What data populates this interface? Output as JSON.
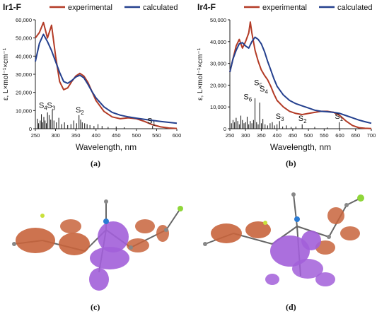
{
  "chart_data": [
    {
      "type": "line",
      "panel_title": "Ir1-F",
      "xlabel": "Wavelength, nm",
      "ylabel": "ε, L×mol⁻¹×cm⁻¹",
      "xlim": [
        250,
        600
      ],
      "ylim": [
        0,
        60000
      ],
      "x_ticks": [
        "250",
        "300",
        "350",
        "400",
        "450",
        "500",
        "550",
        "600"
      ],
      "y_ticks": [
        "0",
        "10,000",
        "20,000",
        "30,000",
        "40,000",
        "50,000",
        "60,000"
      ],
      "legend_position": "top",
      "sublabel": "(a)",
      "series": [
        {
          "name": "experimental",
          "color": "#b33b26",
          "x": [
            250,
            260,
            270,
            280,
            290,
            300,
            310,
            320,
            330,
            340,
            350,
            360,
            370,
            380,
            390,
            400,
            420,
            440,
            460,
            480,
            500,
            520,
            540,
            560,
            580,
            600
          ],
          "y": [
            50000,
            53000,
            58500,
            50000,
            57000,
            40000,
            26000,
            21500,
            22500,
            26000,
            29000,
            30500,
            29000,
            25500,
            20500,
            15500,
            9500,
            6500,
            5500,
            6000,
            5500,
            4000,
            2200,
            1000,
            400,
            150
          ]
        },
        {
          "name": "calculated",
          "color": "#24408e",
          "x": [
            250,
            260,
            270,
            280,
            290,
            300,
            310,
            320,
            330,
            340,
            350,
            360,
            370,
            380,
            390,
            400,
            420,
            440,
            460,
            480,
            500,
            520,
            540,
            560,
            580,
            600
          ],
          "y": [
            37000,
            47000,
            52000,
            48000,
            43000,
            37000,
            31000,
            26000,
            25000,
            26500,
            28500,
            29500,
            28000,
            24500,
            20500,
            17000,
            12000,
            9000,
            7500,
            6500,
            5800,
            5200,
            4600,
            4000,
            3500,
            3000
          ]
        }
      ],
      "transitions": {
        "x": [
          255,
          258,
          262,
          265,
          268,
          271,
          274,
          277,
          280,
          284,
          288,
          292,
          296,
          302,
          308,
          315,
          322,
          330,
          338,
          345,
          352,
          358,
          362,
          366,
          372,
          378,
          385,
          395,
          405,
          415,
          430,
          450,
          470,
          540
        ],
        "y": [
          5500,
          3000,
          4500,
          8000,
          3500,
          6500,
          4500,
          3000,
          9000,
          7500,
          5000,
          10500,
          4500,
          3500,
          6000,
          2500,
          3500,
          2000,
          2500,
          4500,
          3000,
          7500,
          5000,
          3500,
          3000,
          2500,
          2000,
          1500,
          2500,
          1500,
          1000,
          1200,
          800,
          1500
        ]
      },
      "state_labels": [
        {
          "name": "S",
          "sub": "4",
          "x": 269,
          "y": 11500
        },
        {
          "name": "S",
          "sub": "3",
          "x": 289,
          "y": 11500
        },
        {
          "name": "S",
          "sub": "2",
          "x": 360,
          "y": 9000
        },
        {
          "name": "S",
          "sub": "1",
          "x": 537,
          "y": 3000
        }
      ]
    },
    {
      "type": "line",
      "panel_title": "Ir4-F",
      "xlabel": "Wavelength, nm",
      "ylabel": "ε, L×mol⁻¹×cm⁻¹",
      "xlim": [
        250,
        700
      ],
      "ylim": [
        0,
        50000
      ],
      "x_ticks": [
        "250",
        "300",
        "350",
        "400",
        "450",
        "500",
        "550",
        "600",
        "650",
        "700"
      ],
      "y_ticks": [
        "0",
        "10,000",
        "20,000",
        "30,000",
        "40,000",
        "50,000"
      ],
      "legend_position": "top",
      "sublabel": "(b)",
      "series": [
        {
          "name": "experimental",
          "color": "#b33b26",
          "x": [
            250,
            260,
            270,
            280,
            290,
            300,
            310,
            315,
            320,
            330,
            340,
            350,
            360,
            370,
            380,
            390,
            400,
            420,
            440,
            460,
            480,
            500,
            520,
            540,
            560,
            580,
            600,
            620,
            640,
            660,
            680,
            700
          ],
          "y": [
            26000,
            32000,
            38000,
            41000,
            37000,
            40000,
            44000,
            49000,
            44000,
            36000,
            31000,
            27000,
            24500,
            22500,
            19500,
            16000,
            13000,
            10000,
            8000,
            7000,
            6500,
            7000,
            7500,
            8000,
            8000,
            7500,
            6000,
            3500,
            1500,
            500,
            200,
            100
          ]
        },
        {
          "name": "calculated",
          "color": "#24408e",
          "x": [
            250,
            260,
            270,
            280,
            290,
            300,
            310,
            320,
            330,
            340,
            350,
            360,
            370,
            380,
            390,
            400,
            420,
            440,
            460,
            480,
            500,
            520,
            540,
            560,
            580,
            600,
            620,
            640,
            660,
            680,
            700
          ],
          "y": [
            26000,
            32000,
            36000,
            39000,
            39500,
            38000,
            37000,
            40000,
            42000,
            41000,
            39000,
            35500,
            31000,
            27000,
            23000,
            19500,
            15500,
            13000,
            11500,
            10500,
            9500,
            8500,
            8000,
            7800,
            7500,
            7000,
            6000,
            5000,
            4000,
            3200,
            2500
          ]
        }
      ],
      "transitions": {
        "x": [
          255,
          260,
          265,
          270,
          275,
          280,
          285,
          290,
          295,
          300,
          305,
          310,
          315,
          320,
          325,
          330,
          335,
          340,
          345,
          350,
          355,
          362,
          370,
          378,
          385,
          392,
          400,
          408,
          418,
          430,
          445,
          460,
          480,
          520,
          560,
          598
        ],
        "y": [
          2500,
          4000,
          3000,
          5000,
          3500,
          2000,
          6000,
          4000,
          2500,
          3000,
          5500,
          2000,
          3500,
          2500,
          4000,
          14000,
          3000,
          2000,
          12000,
          2500,
          4500,
          2000,
          1500,
          2500,
          3000,
          1500,
          2000,
          3500,
          1000,
          1500,
          800,
          1000,
          2000,
          800,
          600,
          3000
        ]
      },
      "state_labels": [
        {
          "name": "S",
          "sub": "6",
          "x": 307,
          "y": 13500
        },
        {
          "name": "S",
          "sub": "5",
          "x": 340,
          "y": 20000
        },
        {
          "name": "S",
          "sub": "4",
          "x": 358,
          "y": 17000
        },
        {
          "name": "S",
          "sub": "3",
          "x": 409,
          "y": 4500
        },
        {
          "name": "S",
          "sub": "2",
          "x": 481,
          "y": 3500
        },
        {
          "name": "S",
          "sub": "1",
          "x": 597,
          "y": 4500
        }
      ]
    }
  ],
  "molecules": [
    {
      "sublabel": "(c)",
      "orbital_color_1": "#c8643c",
      "orbital_color_2": "#a25fd9"
    },
    {
      "sublabel": "(d)",
      "orbital_color_1": "#c8643c",
      "orbital_color_2": "#a25fd9"
    }
  ]
}
